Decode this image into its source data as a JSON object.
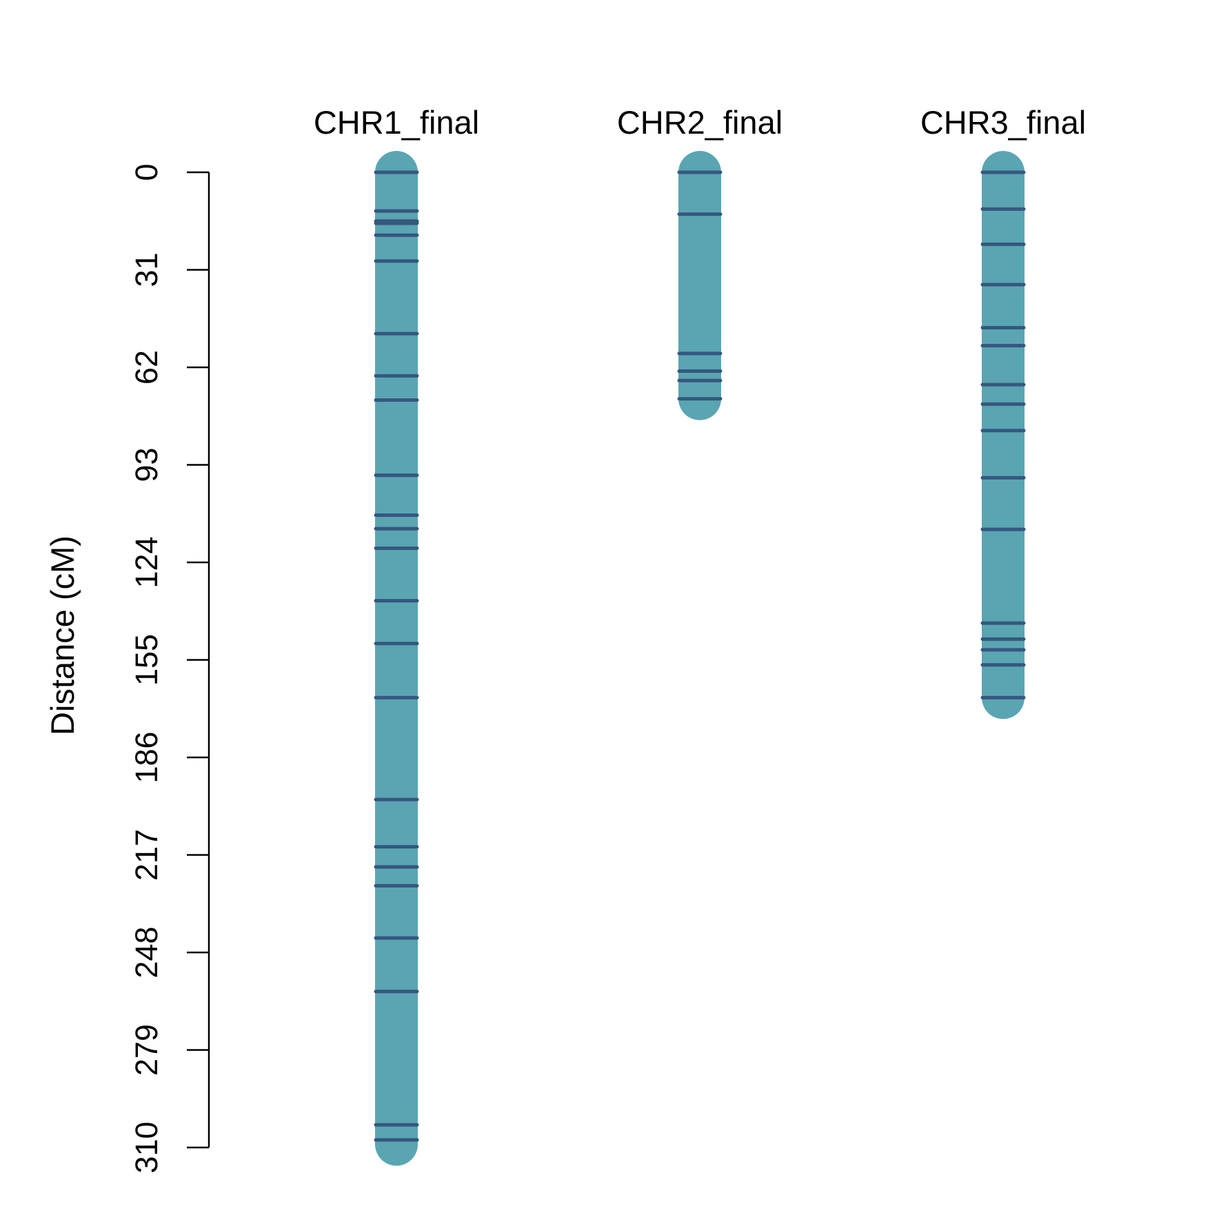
{
  "chart_data": {
    "type": "linkage-map",
    "ylabel": "Distance (cM)",
    "ylim": [
      0,
      310
    ],
    "y_ticks": [
      "0",
      "31",
      "62",
      "93",
      "124",
      "155",
      "186",
      "217",
      "248",
      "279",
      "310"
    ],
    "colors": {
      "chromosome": "#5AA5B2",
      "marker": "#36577E",
      "axis": "#000000"
    },
    "chromosomes": [
      {
        "name": "CHR1_final",
        "length": 309,
        "markers": [
          0,
          12.3,
          15.5,
          16.2,
          20,
          28.2,
          51.3,
          64.7,
          72.4,
          96.3,
          109,
          113.3,
          119.5,
          136.2,
          149.8,
          167,
          199.4,
          214.4,
          220.8,
          226.8,
          243.4,
          260.4,
          302.8,
          307.6
        ]
      },
      {
        "name": "CHR2_final",
        "length": 72,
        "markers": [
          0,
          13.3,
          57.6,
          63.2,
          66.2,
          72
        ]
      },
      {
        "name": "CHR3_final",
        "length": 167,
        "markers": [
          0,
          11.7,
          22.9,
          35.7,
          49.4,
          55.1,
          67.5,
          73.7,
          82.1,
          97.1,
          113.5,
          143.3,
          148.4,
          151.8,
          156.6,
          167
        ]
      }
    ]
  }
}
